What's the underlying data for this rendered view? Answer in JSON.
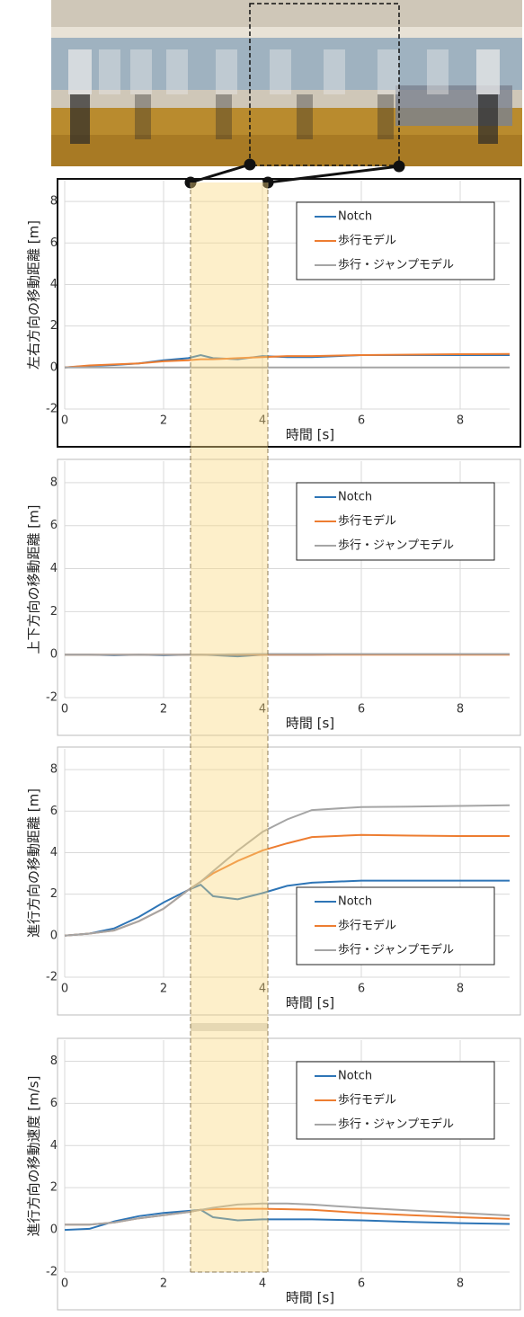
{
  "chart_data": [
    {
      "type": "line",
      "ylabel": "左右方向の移動距離 [m]",
      "xlabel": "時間 [s]",
      "x": [
        0,
        0.5,
        1,
        1.5,
        2,
        2.5,
        2.75,
        3,
        3.5,
        4,
        4.5,
        5,
        6,
        7,
        8,
        9
      ],
      "series": [
        {
          "name": "Notch",
          "color": "#2e75b6",
          "values": [
            0,
            0.08,
            0.12,
            0.2,
            0.35,
            0.45,
            0.6,
            0.45,
            0.4,
            0.55,
            0.5,
            0.5,
            0.6,
            0.6,
            0.6,
            0.6
          ]
        },
        {
          "name": "歩行モデル",
          "color": "#ed7d31",
          "values": [
            0,
            0.1,
            0.15,
            0.2,
            0.3,
            0.35,
            0.4,
            0.4,
            0.45,
            0.5,
            0.55,
            0.55,
            0.6,
            0.62,
            0.64,
            0.65
          ]
        },
        {
          "name": "歩行・ジャンプモデル",
          "color": "#a5a5a5",
          "values": [
            0,
            0,
            0,
            0,
            0,
            0,
            0,
            0,
            0,
            0,
            0,
            0,
            0,
            0,
            0,
            0
          ]
        }
      ],
      "xlim": [
        0,
        9
      ],
      "ylim": [
        -2,
        9
      ],
      "xticks": [
        0,
        2,
        4,
        6,
        8
      ],
      "yticks": [
        -2,
        0,
        2,
        4,
        6,
        8
      ],
      "grid": true,
      "legend": "upper right"
    },
    {
      "type": "line",
      "ylabel": "上下方向の移動距離 [m]",
      "xlabel": "時間 [s]",
      "x": [
        0,
        0.5,
        1,
        1.5,
        2,
        2.5,
        2.75,
        3,
        3.5,
        4,
        4.5,
        5,
        6,
        7,
        8,
        9
      ],
      "series": [
        {
          "name": "Notch",
          "color": "#2e75b6",
          "values": [
            0,
            0,
            -0.03,
            0,
            -0.03,
            0,
            0,
            -0.02,
            -0.08,
            0,
            0,
            0,
            0.02,
            0.02,
            0.02,
            0.02
          ]
        },
        {
          "name": "歩行モデル",
          "color": "#ed7d31",
          "values": [
            0,
            0,
            0,
            0,
            0,
            0,
            0,
            0,
            0,
            0,
            0,
            0,
            0,
            0,
            0,
            0
          ]
        },
        {
          "name": "歩行・ジャンプモデル",
          "color": "#a5a5a5",
          "values": [
            0,
            0,
            0,
            0,
            0,
            0,
            0,
            0,
            0.02,
            0.03,
            0.03,
            0.03,
            0.03,
            0.03,
            0.03,
            0.03
          ]
        }
      ],
      "xlim": [
        0,
        9
      ],
      "ylim": [
        -2,
        9
      ],
      "xticks": [
        0,
        2,
        4,
        6,
        8
      ],
      "yticks": [
        -2,
        0,
        2,
        4,
        6,
        8
      ],
      "grid": true,
      "legend": "upper right"
    },
    {
      "type": "line",
      "ylabel": "進行方向の移動距離 [m]",
      "xlabel": "時間 [s]",
      "x": [
        0,
        0.5,
        1,
        1.5,
        2,
        2.5,
        2.75,
        3,
        3.5,
        4,
        4.5,
        5,
        6,
        7,
        8,
        9
      ],
      "series": [
        {
          "name": "Notch",
          "color": "#2e75b6",
          "values": [
            0,
            0.1,
            0.35,
            0.9,
            1.6,
            2.2,
            2.45,
            1.9,
            1.75,
            2.05,
            2.4,
            2.55,
            2.65,
            2.65,
            2.65,
            2.65
          ]
        },
        {
          "name": "歩行モデル",
          "color": "#ed7d31",
          "values": [
            0,
            0.1,
            0.25,
            0.7,
            1.3,
            2.2,
            2.6,
            3.0,
            3.6,
            4.1,
            4.45,
            4.75,
            4.85,
            4.82,
            4.8,
            4.8
          ]
        },
        {
          "name": "歩行・ジャンプモデル",
          "color": "#a5a5a5",
          "values": [
            0,
            0.1,
            0.25,
            0.7,
            1.3,
            2.2,
            2.6,
            3.1,
            4.1,
            5.0,
            5.6,
            6.05,
            6.2,
            6.22,
            6.25,
            6.28
          ]
        }
      ],
      "xlim": [
        0,
        9
      ],
      "ylim": [
        -2,
        9
      ],
      "xticks": [
        0,
        2,
        4,
        6,
        8
      ],
      "yticks": [
        -2,
        0,
        2,
        4,
        6,
        8
      ],
      "grid": true,
      "legend": "lower right"
    },
    {
      "type": "line",
      "ylabel": "進行方向の移動速度 [m/s]",
      "xlabel": "時間 [s]",
      "x": [
        0,
        0.5,
        1,
        1.5,
        2,
        2.5,
        2.75,
        3,
        3.5,
        4,
        4.5,
        5,
        6,
        7,
        8,
        9
      ],
      "series": [
        {
          "name": "Notch",
          "color": "#2e75b6",
          "values": [
            0,
            0.05,
            0.4,
            0.65,
            0.8,
            0.9,
            0.95,
            0.6,
            0.45,
            0.5,
            0.5,
            0.5,
            0.45,
            0.38,
            0.32,
            0.28
          ]
        },
        {
          "name": "歩行モデル",
          "color": "#ed7d31",
          "values": [
            0.25,
            0.25,
            0.35,
            0.55,
            0.7,
            0.85,
            0.95,
            0.98,
            1.0,
            1.0,
            0.98,
            0.95,
            0.8,
            0.7,
            0.6,
            0.52
          ]
        },
        {
          "name": "歩行・ジャンプモデル",
          "color": "#a5a5a5",
          "values": [
            0.25,
            0.25,
            0.35,
            0.55,
            0.7,
            0.85,
            0.95,
            1.05,
            1.2,
            1.25,
            1.25,
            1.2,
            1.05,
            0.92,
            0.8,
            0.68
          ]
        }
      ],
      "xlim": [
        0,
        9
      ],
      "ylim": [
        -2,
        9
      ],
      "xticks": [
        0,
        2,
        4,
        6,
        8
      ],
      "yticks": [
        -2,
        0,
        2,
        4,
        6,
        8
      ],
      "grid": true,
      "legend": "upper right"
    }
  ]
}
